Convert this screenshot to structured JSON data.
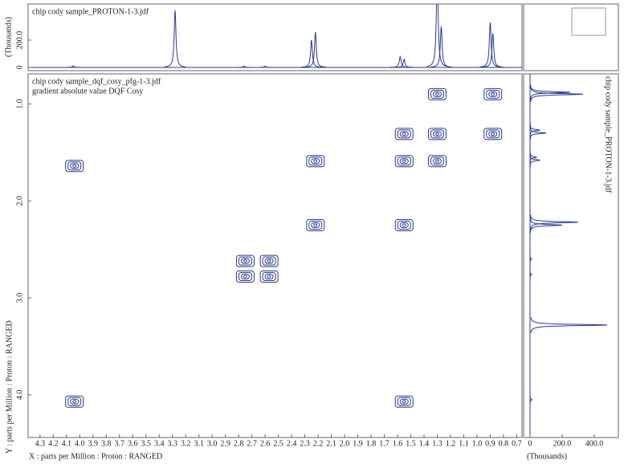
{
  "chart_data": [
    {
      "type": "contour",
      "title": "chip cody sample_dqf_cosy_pfg-1-3.jdf",
      "subtitle": "gradient absolute value DQF Cosy",
      "x_label": "X : parts per Million : Proton : RANGED",
      "y_label": "Y : parts per Million : Proton : RANGED",
      "color": "#2b3990",
      "x": [
        1.3,
        0.88,
        1.55,
        1.3,
        0.88,
        4.04,
        2.22,
        1.55,
        1.3,
        2.22,
        1.55,
        2.75,
        2.57,
        2.75,
        2.57,
        4.04,
        1.55
      ],
      "y": [
        0.9,
        0.9,
        1.31,
        1.31,
        1.31,
        1.64,
        1.59,
        1.59,
        1.59,
        2.25,
        2.25,
        2.62,
        2.62,
        2.78,
        2.78,
        4.07,
        4.07
      ],
      "xlim": [
        4.39,
        0.66
      ],
      "ylim": [
        0.69,
        4.44
      ],
      "xticks": [
        4.3,
        4.2,
        4.1,
        {
          "value": 4.0,
          "label": "4.0"
        },
        3.9,
        3.8,
        3.7,
        3.6,
        3.5,
        3.4,
        3.3,
        3.2,
        3.1,
        {
          "value": 3.0,
          "label": "3.0"
        },
        2.9,
        2.8,
        2.7,
        2.6,
        2.5,
        2.4,
        2.3,
        2.2,
        2.1,
        {
          "value": 2.0,
          "label": "2.0"
        },
        1.9,
        1.8,
        1.7,
        1.6,
        1.5,
        1.4,
        1.3,
        1.2,
        1.1,
        {
          "value": 1.0,
          "label": "1.0"
        },
        0.9,
        0.8,
        0.7
      ],
      "yticks": [
        {
          "value": 1.0,
          "label": "1.0"
        },
        {
          "value": 2.0,
          "label": "2.0"
        },
        {
          "value": 3.0,
          "label": "3.0"
        },
        {
          "value": 4.0,
          "label": "4.0"
        }
      ]
    },
    {
      "type": "spectrum",
      "orientation": "horizontal",
      "title": "chip cody sample_PROTON-1-3.jdf",
      "y_label": "(Thousands)",
      "color": "#2b3990",
      "x": [
        4.05,
        3.28,
        2.76,
        2.6,
        2.25,
        2.22,
        1.58,
        1.55,
        1.3,
        1.27,
        0.9,
        0.88
      ],
      "values": [
        12,
        420,
        10,
        10,
        200,
        260,
        80,
        60,
        700,
        300,
        330,
        250
      ],
      "xlim": [
        4.39,
        0.66
      ],
      "ylim": [
        0,
        450
      ],
      "yticks": [
        0,
        {
          "value": 200,
          "label": "200.0"
        }
      ]
    },
    {
      "type": "spectrum",
      "orientation": "vertical",
      "title": "chip cody sample_PROTON-1-3.jdf",
      "x_label": "(Thousands)",
      "color": "#2b3990",
      "y": [
        4.05,
        3.28,
        2.76,
        2.6,
        2.25,
        2.22,
        1.58,
        1.55,
        1.3,
        1.27,
        0.9,
        0.88
      ],
      "values": [
        12,
        480,
        10,
        10,
        200,
        300,
        60,
        40,
        100,
        60,
        330,
        250
      ],
      "ylim": [
        0.69,
        4.44
      ],
      "xlim": [
        0,
        550
      ],
      "xticks": [
        0,
        {
          "value": 200,
          "label": "200.0"
        },
        {
          "value": 400,
          "label": "400.0"
        }
      ]
    }
  ]
}
